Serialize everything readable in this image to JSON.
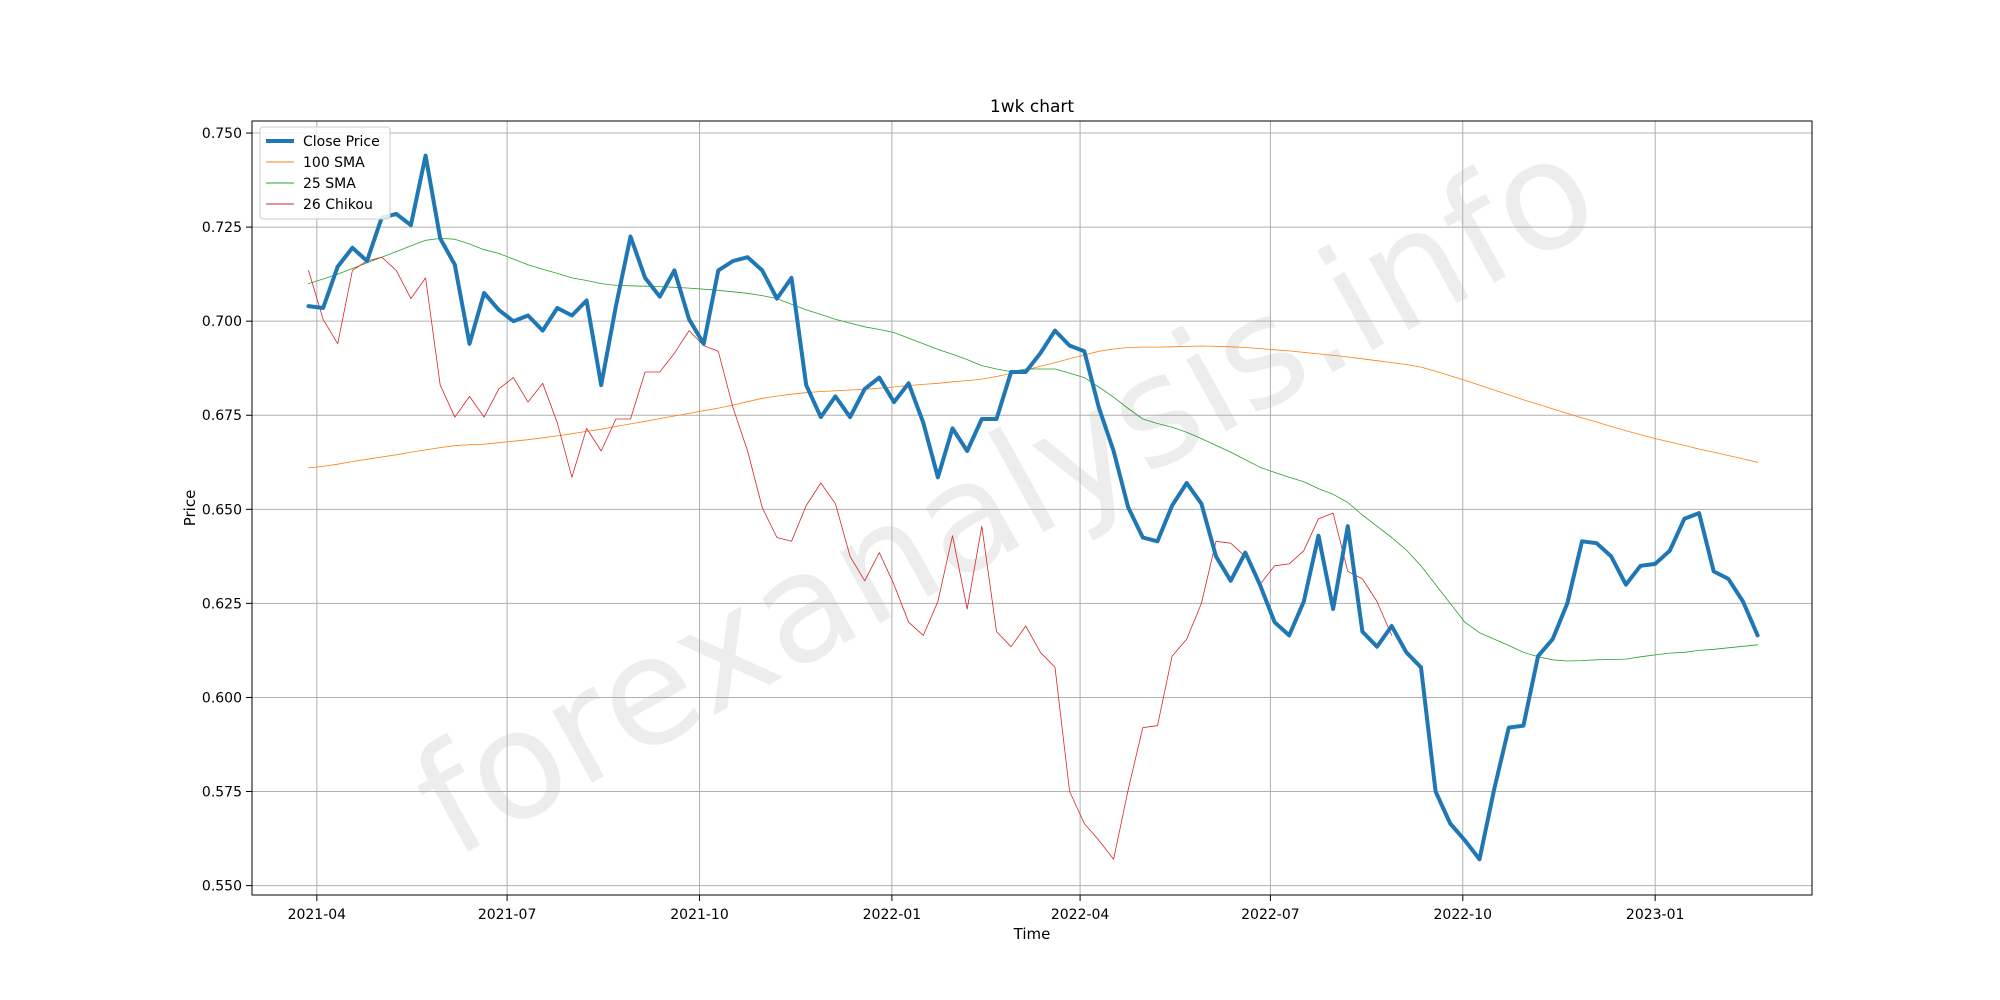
{
  "chart_data": {
    "type": "line",
    "title": "1wk chart",
    "xlabel": "Time",
    "ylabel": "Price",
    "watermark": "forexanalysis.info",
    "x_start": "2021-03-28",
    "x_step_days": 7,
    "xlim": [
      "2021-03-01",
      "2023-03-17"
    ],
    "ylim": [
      0.5475,
      0.7532
    ],
    "x_ticks": [
      {
        "date": "2021-04-01",
        "label": "2021-04"
      },
      {
        "date": "2021-07-01",
        "label": "2021-07"
      },
      {
        "date": "2021-10-01",
        "label": "2021-10"
      },
      {
        "date": "2022-01-01",
        "label": "2022-01"
      },
      {
        "date": "2022-04-01",
        "label": "2022-04"
      },
      {
        "date": "2022-07-01",
        "label": "2022-07"
      },
      {
        "date": "2022-10-01",
        "label": "2022-10"
      },
      {
        "date": "2023-01-01",
        "label": "2023-01"
      }
    ],
    "y_ticks": [
      {
        "value": 0.55,
        "label": "0.550"
      },
      {
        "value": 0.575,
        "label": "0.575"
      },
      {
        "value": 0.6,
        "label": "0.600"
      },
      {
        "value": 0.625,
        "label": "0.625"
      },
      {
        "value": 0.65,
        "label": "0.650"
      },
      {
        "value": 0.675,
        "label": "0.675"
      },
      {
        "value": 0.7,
        "label": "0.700"
      },
      {
        "value": 0.725,
        "label": "0.725"
      },
      {
        "value": 0.75,
        "label": "0.750"
      }
    ],
    "grid": true,
    "legend_position": "top-left",
    "series": [
      {
        "name": "Close Price",
        "color": "#1f77b4",
        "width": 4,
        "values": [
          0.704,
          0.7035,
          0.7145,
          0.7195,
          0.716,
          0.7275,
          0.7285,
          0.7255,
          0.744,
          0.722,
          0.715,
          0.694,
          0.7075,
          0.703,
          0.7,
          0.7015,
          0.6975,
          0.7035,
          0.7015,
          0.7055,
          0.683,
          0.704,
          0.7225,
          0.7115,
          0.7065,
          0.7135,
          0.7005,
          0.694,
          0.7135,
          0.716,
          0.717,
          0.7135,
          0.706,
          0.7115,
          0.683,
          0.6745,
          0.68,
          0.6745,
          0.682,
          0.685,
          0.6785,
          0.6835,
          0.673,
          0.6585,
          0.6715,
          0.6655,
          0.674,
          0.674,
          0.6865,
          0.6865,
          0.6915,
          0.6975,
          0.6935,
          0.692,
          0.677,
          0.6655,
          0.6505,
          0.6425,
          0.6415,
          0.651,
          0.657,
          0.6515,
          0.6375,
          0.631,
          0.6385,
          0.63,
          0.62,
          0.6165,
          0.6255,
          0.643,
          0.6235,
          0.6455,
          0.6175,
          0.6135,
          0.619,
          0.612,
          0.608,
          0.575,
          0.5665,
          0.562,
          0.557,
          0.5755,
          0.592,
          0.5925,
          0.611,
          0.6155,
          0.625,
          0.6415,
          0.641,
          0.6375,
          0.63,
          0.635,
          0.6355,
          0.639,
          0.6475,
          0.649,
          0.6335,
          0.6315,
          0.6255,
          0.6165
        ]
      },
      {
        "name": "100 SMA",
        "color": "#ff7f0e",
        "width": 0.8,
        "values": [
          0.661,
          0.6614,
          0.662,
          0.6627,
          0.6633,
          0.6639,
          0.6645,
          0.6652,
          0.6658,
          0.6664,
          0.6669,
          0.6672,
          0.6673,
          0.6677,
          0.6681,
          0.6685,
          0.669,
          0.6695,
          0.6701,
          0.6707,
          0.6713,
          0.672,
          0.6727,
          0.6734,
          0.6741,
          0.6748,
          0.6755,
          0.6762,
          0.6769,
          0.6777,
          0.6786,
          0.6795,
          0.6801,
          0.6806,
          0.681,
          0.6813,
          0.6815,
          0.6817,
          0.6819,
          0.6822,
          0.6825,
          0.6829,
          0.6832,
          0.6835,
          0.6839,
          0.6842,
          0.6846,
          0.6853,
          0.6861,
          0.687,
          0.688,
          0.689,
          0.69,
          0.691,
          0.692,
          0.6926,
          0.693,
          0.6931,
          0.6931,
          0.6932,
          0.6933,
          0.6934,
          0.6933,
          0.6932,
          0.693,
          0.6927,
          0.6924,
          0.6921,
          0.6917,
          0.6913,
          0.6909,
          0.6905,
          0.69,
          0.6895,
          0.689,
          0.6885,
          0.6878,
          0.6867,
          0.6855,
          0.6843,
          0.683,
          0.6817,
          0.6804,
          0.6791,
          0.6779,
          0.6767,
          0.6755,
          0.6743,
          0.6732,
          0.672,
          0.6709,
          0.6698,
          0.6688,
          0.6679,
          0.667,
          0.666,
          0.6652,
          0.6643,
          0.6634,
          0.6625
        ]
      },
      {
        "name": "25 SMA",
        "color": "#2ca02c",
        "width": 0.8,
        "values": [
          0.71,
          0.7112,
          0.7125,
          0.714,
          0.7155,
          0.717,
          0.7185,
          0.72,
          0.7215,
          0.722,
          0.7218,
          0.7205,
          0.719,
          0.718,
          0.7165,
          0.715,
          0.7138,
          0.7127,
          0.7115,
          0.7108,
          0.71,
          0.7095,
          0.7094,
          0.7093,
          0.7092,
          0.709,
          0.7088,
          0.7085,
          0.7082,
          0.7078,
          0.7074,
          0.7068,
          0.706,
          0.7045,
          0.703,
          0.7018,
          0.7005,
          0.6995,
          0.6985,
          0.6978,
          0.697,
          0.6955,
          0.694,
          0.6925,
          0.6912,
          0.6898,
          0.6882,
          0.6873,
          0.6866,
          0.6873,
          0.6873,
          0.6873,
          0.6862,
          0.685,
          0.6825,
          0.6798,
          0.6768,
          0.674,
          0.6728,
          0.6718,
          0.6705,
          0.6688,
          0.667,
          0.6652,
          0.6632,
          0.6612,
          0.6598,
          0.6585,
          0.6573,
          0.6555,
          0.654,
          0.6518,
          0.6485,
          0.6455,
          0.6425,
          0.6392,
          0.635,
          0.63,
          0.625,
          0.62,
          0.6172,
          0.6155,
          0.6138,
          0.612,
          0.6108,
          0.61,
          0.6097,
          0.6098,
          0.61,
          0.6101,
          0.6102,
          0.6108,
          0.6113,
          0.6118,
          0.612,
          0.6125,
          0.6128,
          0.6132,
          0.6136,
          0.614
        ]
      },
      {
        "name": "26 Chikou",
        "color": "#d62728",
        "width": 0.8,
        "values": [
          0.7135,
          0.7005,
          0.694,
          0.7135,
          0.716,
          0.717,
          0.7135,
          0.706,
          0.7115,
          0.683,
          0.6745,
          0.68,
          0.6745,
          0.682,
          0.685,
          0.6785,
          0.6835,
          0.673,
          0.6585,
          0.6715,
          0.6655,
          0.674,
          0.674,
          0.6865,
          0.6865,
          0.6915,
          0.6975,
          0.6935,
          0.692,
          0.677,
          0.6655,
          0.6505,
          0.6425,
          0.6415,
          0.651,
          0.657,
          0.6515,
          0.6375,
          0.631,
          0.6385,
          0.63,
          0.62,
          0.6165,
          0.6255,
          0.643,
          0.6235,
          0.6455,
          0.6175,
          0.6135,
          0.619,
          0.612,
          0.608,
          0.575,
          0.5665,
          0.562,
          0.557,
          0.5755,
          0.592,
          0.5925,
          0.611,
          0.6155,
          0.625,
          0.6415,
          0.641,
          0.6375,
          0.63,
          0.635,
          0.6355,
          0.639,
          0.6475,
          0.649,
          0.6335,
          0.6315,
          0.6255,
          0.6165
        ]
      }
    ]
  }
}
